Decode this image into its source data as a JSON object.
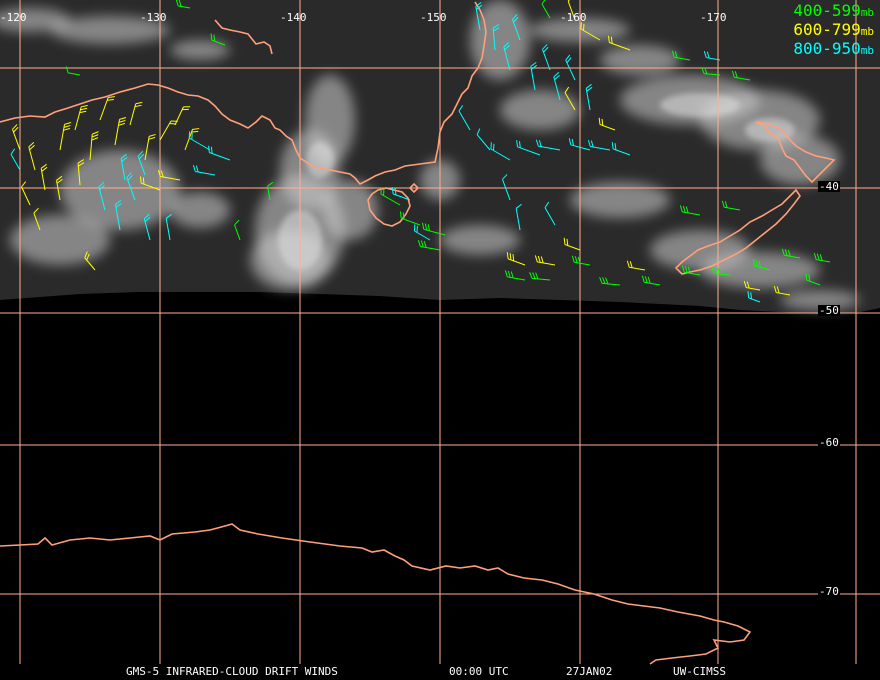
{
  "legend": [
    {
      "range": "400-599",
      "unit": "mb",
      "color": "#00ff00"
    },
    {
      "range": "600-799",
      "unit": "mb",
      "color": "#ffff00"
    },
    {
      "range": "800-950",
      "unit": "mb",
      "color": "#00ffff"
    }
  ],
  "longitude_labels": [
    "-120",
    "-130",
    "-140",
    "-150",
    "-160",
    "-170"
  ],
  "latitude_labels": [
    "-40",
    "-50",
    "-60",
    "-70"
  ],
  "footer": {
    "product": "GMS-5 INFRARED-CLOUD DRIFT WINDS",
    "time": "00:00 UTC",
    "date": "27JAN02",
    "source": "UW-CIMSS"
  },
  "colors": {
    "grid": "#ffb090",
    "coastline": "#ffa07a",
    "clouds": "#d8d8d8",
    "background": "#000000"
  }
}
